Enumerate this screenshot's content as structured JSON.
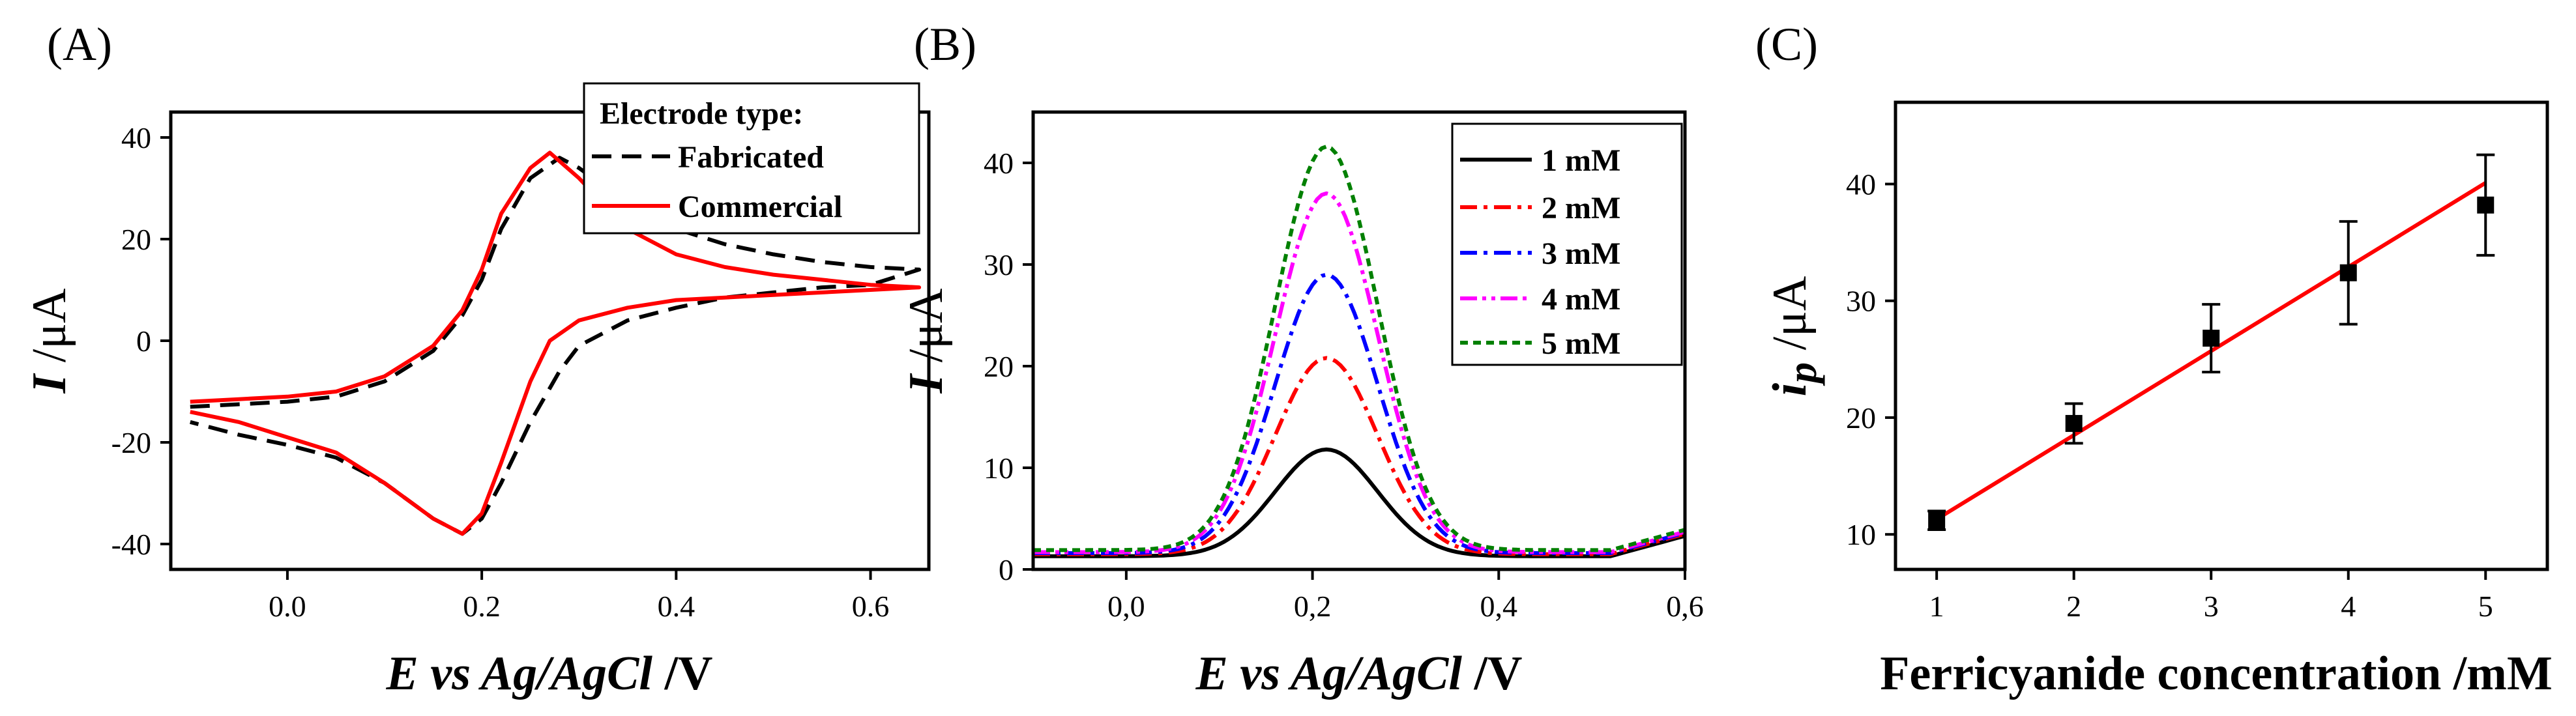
{
  "chart_data": [
    {
      "panel": "(A)",
      "type": "line",
      "xlabel_italic": "E vs Ag/AgCl",
      "xlabel_unit": " /V",
      "ylabel_italic": "I",
      "ylabel_unit": " /μA",
      "xlim": [
        -0.12,
        0.66
      ],
      "ylim": [
        -45,
        45
      ],
      "xticks": [
        0.0,
        0.2,
        0.4,
        0.6
      ],
      "xtick_labels": [
        "0.0",
        "0.2",
        "0.4",
        "0.6"
      ],
      "yticks": [
        -40,
        -20,
        0,
        20,
        40
      ],
      "ytick_labels": [
        "-40",
        "-20",
        "0",
        "20",
        "40"
      ],
      "legend_title": "Electrode type:",
      "legend_position": "top-right",
      "series": [
        {
          "name": "Fabricated",
          "color": "#000000",
          "style": "dashed",
          "x": [
            -0.1,
            -0.05,
            0.0,
            0.05,
            0.1,
            0.15,
            0.18,
            0.2,
            0.22,
            0.25,
            0.28,
            0.3,
            0.35,
            0.4,
            0.45,
            0.5,
            0.55,
            0.6,
            0.65,
            0.6,
            0.55,
            0.5,
            0.45,
            0.4,
            0.35,
            0.3,
            0.28,
            0.25,
            0.22,
            0.2,
            0.18,
            0.15,
            0.1,
            0.05,
            0.0,
            -0.05,
            -0.1
          ],
          "y": [
            -13,
            -12.5,
            -12,
            -11,
            -8,
            -2,
            5,
            12,
            22,
            32,
            36,
            34,
            27,
            22,
            19,
            17,
            15.5,
            14.5,
            14,
            11,
            10.5,
            9.5,
            8.5,
            6.5,
            4,
            -1,
            -6,
            -16,
            -28,
            -35,
            -38,
            -35,
            -28,
            -23,
            -20.5,
            -18.5,
            -16
          ]
        },
        {
          "name": "Commercial",
          "color": "#ff0000",
          "style": "solid",
          "x": [
            -0.1,
            -0.05,
            0.0,
            0.05,
            0.1,
            0.15,
            0.18,
            0.2,
            0.22,
            0.25,
            0.27,
            0.3,
            0.35,
            0.4,
            0.45,
            0.5,
            0.55,
            0.6,
            0.65,
            0.6,
            0.55,
            0.5,
            0.45,
            0.4,
            0.35,
            0.3,
            0.27,
            0.25,
            0.22,
            0.2,
            0.18,
            0.15,
            0.1,
            0.05,
            0.0,
            -0.05,
            -0.1
          ],
          "y": [
            -12,
            -11.5,
            -11,
            -10,
            -7,
            -1,
            6,
            14,
            25,
            34,
            37,
            32,
            22,
            17,
            14.5,
            13,
            12,
            11,
            10.5,
            10,
            9.5,
            9,
            8.5,
            8,
            6.5,
            4,
            0,
            -8,
            -24,
            -34,
            -38,
            -35,
            -28,
            -22,
            -19,
            -16,
            -14
          ]
        }
      ]
    },
    {
      "panel": "(B)",
      "type": "line",
      "xlabel_italic": "E vs Ag/AgCl",
      "xlabel_unit": " /V",
      "ylabel_italic": "I",
      "ylabel_unit": " /μA",
      "xlim": [
        -0.1,
        0.6
      ],
      "ylim": [
        0,
        45
      ],
      "xticks": [
        0.0,
        0.2,
        0.4,
        0.6
      ],
      "xtick_labels": [
        "0,0",
        "0,2",
        "0,4",
        "0,6"
      ],
      "yticks": [
        0,
        10,
        20,
        30,
        40
      ],
      "ytick_labels": [
        "0",
        "10",
        "20",
        "30",
        "40"
      ],
      "legend_position": "top-right",
      "peak_x": 0.215,
      "peak_width": 0.055,
      "series": [
        {
          "name": "1 mM",
          "color": "#000000",
          "style": "solid",
          "peak": 11.8,
          "baseline": 1.3
        },
        {
          "name": "2 mM",
          "color": "#ff0000",
          "style": "dashdot",
          "peak": 20.8,
          "baseline": 1.5
        },
        {
          "name": "3 mM",
          "color": "#0000ff",
          "style": "dashdot",
          "peak": 29.0,
          "baseline": 1.6
        },
        {
          "name": "4 mM",
          "color": "#ff00ff",
          "style": "dashdotdot",
          "peak": 37.0,
          "baseline": 1.7
        },
        {
          "name": "5 mM",
          "color": "#008000",
          "style": "dotted",
          "peak": 41.6,
          "baseline": 1.9
        }
      ]
    },
    {
      "panel": "(C)",
      "type": "scatter",
      "xlabel": "Ferricyanide concentration /mM",
      "ylabel_italic": "i",
      "ylabel_sub": "p",
      "ylabel_unit": " /μA",
      "xlim": [
        0.7,
        5.45
      ],
      "ylim": [
        7,
        47
      ],
      "xticks": [
        1,
        2,
        3,
        4,
        5
      ],
      "xtick_labels": [
        "1",
        "2",
        "3",
        "4",
        "5"
      ],
      "yticks": [
        10,
        20,
        30,
        40
      ],
      "ytick_labels": [
        "10",
        "20",
        "30",
        "40"
      ],
      "points": {
        "x": [
          1,
          2,
          3,
          4,
          5
        ],
        "y": [
          11.2,
          19.5,
          26.8,
          32.4,
          38.2
        ],
        "err": [
          0.8,
          1.7,
          2.9,
          4.4,
          4.3
        ]
      },
      "fit": {
        "x": [
          1,
          5
        ],
        "y": [
          11.3,
          40.1
        ],
        "color": "#ff0000"
      }
    }
  ]
}
